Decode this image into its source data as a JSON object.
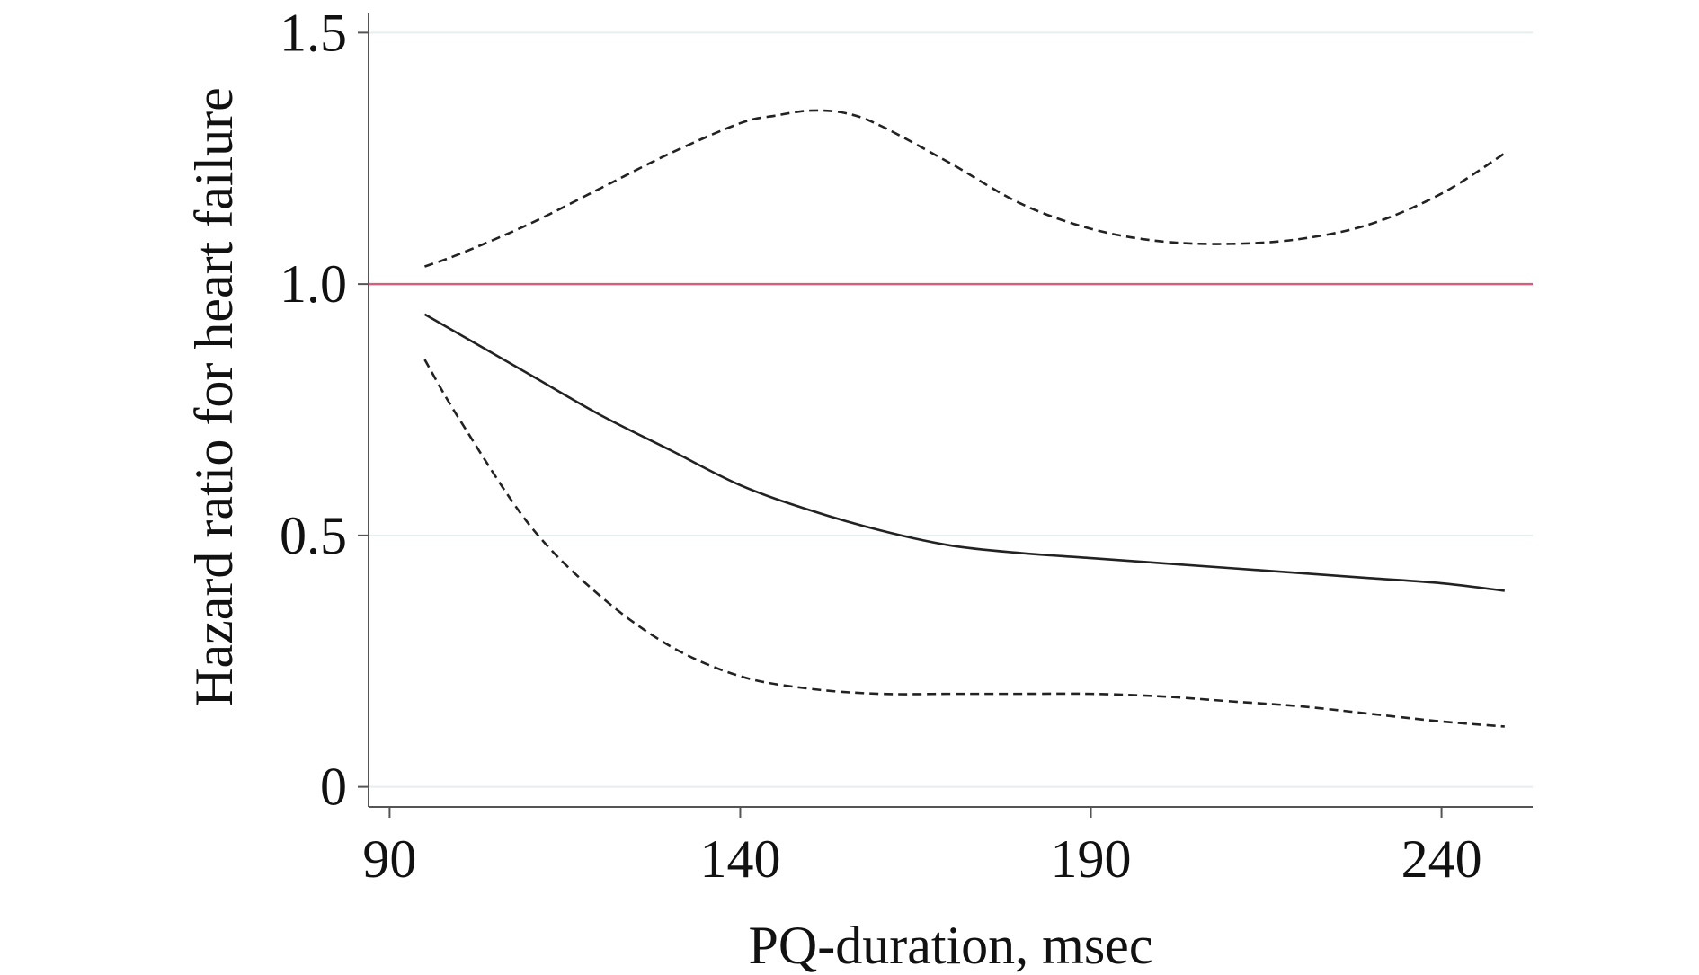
{
  "chart_data": {
    "type": "line",
    "title": "",
    "xlabel": "PQ-duration, msec",
    "ylabel": "Hazard ratio for heart failure",
    "xlim": [
      87,
      253
    ],
    "ylim": [
      -0.04,
      1.54
    ],
    "x_ticks": [
      90,
      140,
      190,
      240
    ],
    "x_tick_labels": [
      "90",
      "140",
      "190",
      "240"
    ],
    "y_ticks": [
      0,
      0.5,
      1.0,
      1.5
    ],
    "y_tick_labels": [
      "0",
      "0.5",
      "1.0",
      "1.5"
    ],
    "grid": "horizontal",
    "legend": "none",
    "reference_line": {
      "y": 1.0,
      "color": "#d0607e"
    },
    "series": [
      {
        "style": "solid",
        "color": "#222222",
        "x": [
          95,
          100,
          110,
          120,
          130,
          140,
          150,
          160,
          170,
          180,
          190,
          200,
          210,
          220,
          230,
          240,
          249
        ],
        "y": [
          0.94,
          0.9,
          0.82,
          0.74,
          0.67,
          0.6,
          0.55,
          0.51,
          0.48,
          0.465,
          0.455,
          0.445,
          0.435,
          0.425,
          0.415,
          0.405,
          0.39
        ]
      },
      {
        "style": "dashed",
        "color": "#222222",
        "x": [
          95,
          100,
          110,
          120,
          130,
          140,
          145,
          150,
          155,
          160,
          170,
          180,
          190,
          200,
          210,
          220,
          230,
          240,
          249
        ],
        "y": [
          1.035,
          1.06,
          1.12,
          1.19,
          1.26,
          1.32,
          1.335,
          1.345,
          1.34,
          1.315,
          1.24,
          1.16,
          1.11,
          1.085,
          1.08,
          1.09,
          1.12,
          1.18,
          1.26
        ]
      },
      {
        "style": "dashed",
        "color": "#222222",
        "x": [
          95,
          100,
          110,
          120,
          130,
          140,
          150,
          160,
          170,
          180,
          190,
          200,
          210,
          220,
          230,
          240,
          249
        ],
        "y": [
          0.85,
          0.73,
          0.52,
          0.38,
          0.28,
          0.22,
          0.195,
          0.185,
          0.185,
          0.185,
          0.185,
          0.18,
          0.17,
          0.16,
          0.145,
          0.13,
          0.12
        ]
      }
    ]
  }
}
